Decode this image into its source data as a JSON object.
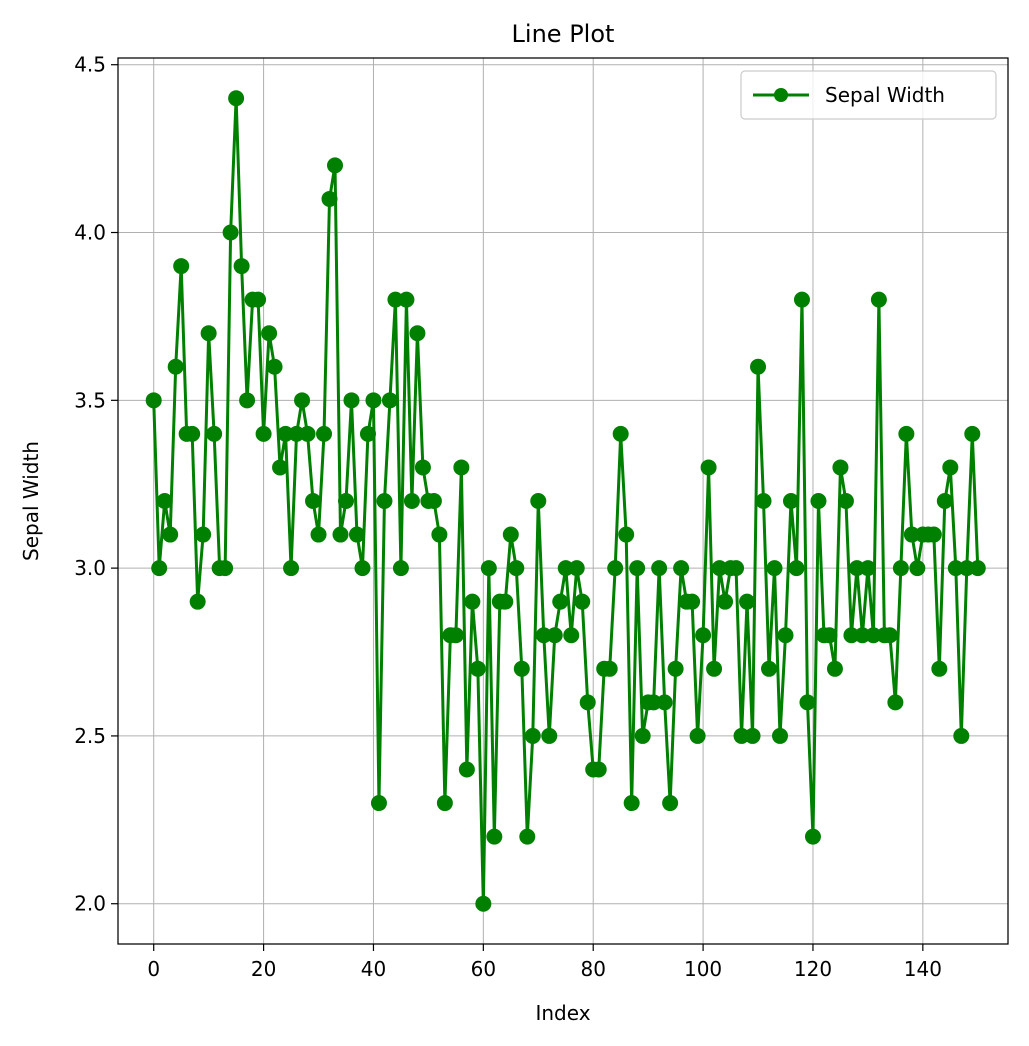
{
  "chart_data": {
    "type": "line",
    "title": "Line Plot",
    "xlabel": "Index",
    "ylabel": "Sepal Width",
    "xlim": [
      -6.5,
      155.5
    ],
    "ylim": [
      1.88,
      4.52
    ],
    "xticks": [
      0,
      20,
      40,
      60,
      80,
      100,
      120,
      140
    ],
    "yticks": [
      2.0,
      2.5,
      3.0,
      3.5,
      4.0,
      4.5
    ],
    "ytick_labels": [
      "2.0",
      "2.5",
      "3.0",
      "3.5",
      "4.0",
      "4.5"
    ],
    "grid": true,
    "legend_position": "top-right",
    "series": [
      {
        "name": "Sepal Width",
        "color": "#008000",
        "marker": "circle",
        "x_start": 0,
        "values": [
          3.5,
          3.0,
          3.2,
          3.1,
          3.6,
          3.9,
          3.4,
          3.4,
          2.9,
          3.1,
          3.7,
          3.4,
          3.0,
          3.0,
          4.0,
          4.4,
          3.9,
          3.5,
          3.8,
          3.8,
          3.4,
          3.7,
          3.6,
          3.3,
          3.4,
          3.0,
          3.4,
          3.5,
          3.4,
          3.2,
          3.1,
          3.4,
          4.1,
          4.2,
          3.1,
          3.2,
          3.5,
          3.1,
          3.0,
          3.4,
          3.5,
          2.3,
          3.2,
          3.5,
          3.8,
          3.0,
          3.8,
          3.2,
          3.7,
          3.3,
          3.2,
          3.2,
          3.1,
          2.3,
          2.8,
          2.8,
          3.3,
          2.4,
          2.9,
          2.7,
          2.0,
          3.0,
          2.2,
          2.9,
          2.9,
          3.1,
          3.0,
          2.7,
          2.2,
          2.5,
          3.2,
          2.8,
          2.5,
          2.8,
          2.9,
          3.0,
          2.8,
          3.0,
          2.9,
          2.6,
          2.4,
          2.4,
          2.7,
          2.7,
          3.0,
          3.4,
          3.1,
          2.3,
          3.0,
          2.5,
          2.6,
          2.6,
          3.0,
          2.6,
          2.3,
          2.7,
          3.0,
          2.9,
          2.9,
          2.5,
          2.8,
          3.3,
          2.7,
          3.0,
          2.9,
          3.0,
          3.0,
          2.5,
          2.9,
          2.5,
          3.6,
          3.2,
          2.7,
          3.0,
          2.5,
          2.8,
          3.2,
          3.0,
          3.8,
          2.6,
          2.2,
          3.2,
          2.8,
          2.8,
          2.7,
          3.3,
          3.2,
          2.8,
          3.0,
          2.8,
          3.0,
          2.8,
          3.8,
          2.8,
          2.8,
          2.6,
          3.0,
          3.4,
          3.1,
          3.0,
          3.1,
          3.1,
          3.1,
          2.7,
          3.2,
          3.3,
          3.0,
          2.5,
          3.0,
          3.4,
          3.0
        ]
      }
    ]
  }
}
